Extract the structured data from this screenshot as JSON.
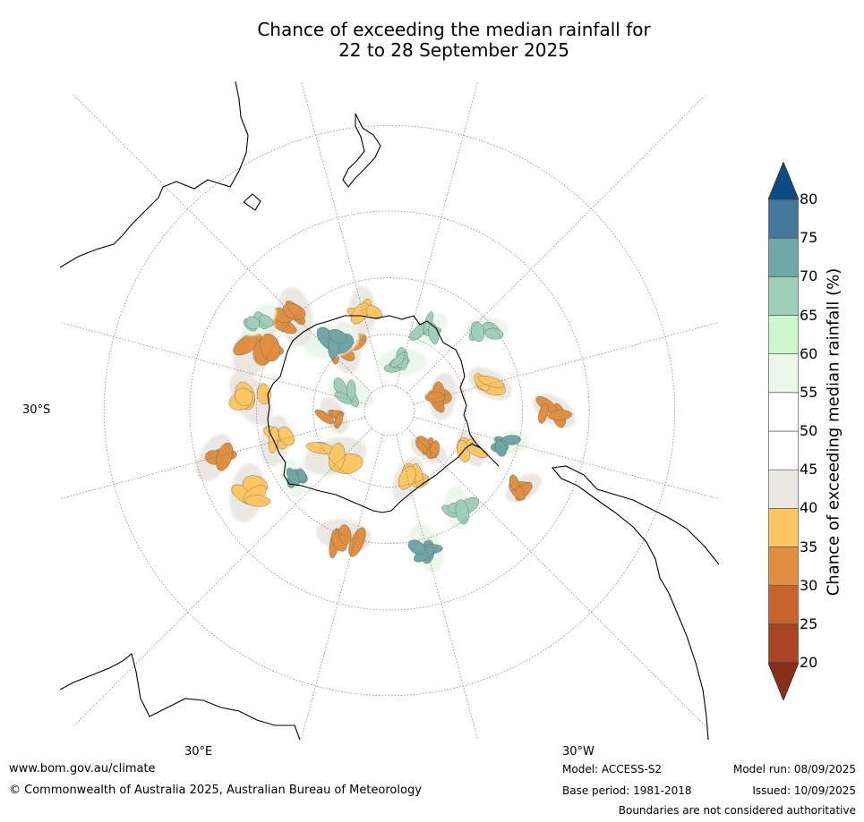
{
  "title_line1": "Chance of exceeding the median rainfall for",
  "title_line2": "22 to 28 September 2025",
  "map": {
    "projection": "south-polar-stereographic",
    "lat_label": "30°S",
    "lon_label_left": "30°E",
    "lon_label_right": "30°W",
    "patches": [
      {
        "cat": "35-40",
        "lat": -62,
        "lon": 85,
        "r": 1.6
      },
      {
        "cat": "30-35",
        "lat": -40,
        "lon": 115,
        "r": 1.4
      },
      {
        "cat": "35-40",
        "lat": -45,
        "lon": 60,
        "r": 1.3
      },
      {
        "cat": "70-75",
        "lat": -37,
        "lon": 150,
        "r": 1.3
      },
      {
        "cat": "65-70",
        "lat": -45,
        "lon": 170,
        "r": 1.1
      },
      {
        "cat": "35-40",
        "lat": -62,
        "lon": 150,
        "r": 1.2
      },
      {
        "cat": "30-35",
        "lat": -68,
        "lon": 180,
        "r": 1.0
      },
      {
        "cat": "35-40",
        "lat": -55,
        "lon": -160,
        "r": 1.0
      },
      {
        "cat": "30-35",
        "lat": -68,
        "lon": -120,
        "r": 1.2
      },
      {
        "cat": "70-75",
        "lat": -43,
        "lon": -150,
        "r": 1.0
      },
      {
        "cat": "30-35",
        "lat": -33,
        "lon": -165,
        "r": 1.0
      },
      {
        "cat": "30-35",
        "lat": -30,
        "lon": -135,
        "r": 1.2
      },
      {
        "cat": "65-70",
        "lat": -70,
        "lon": -60,
        "r": 1.2
      },
      {
        "cat": "65-70",
        "lat": -55,
        "lon": -70,
        "r": 1.1
      },
      {
        "cat": "30-35",
        "lat": -60,
        "lon": -10,
        "r": 1.3
      },
      {
        "cat": "70-75",
        "lat": -55,
        "lon": -5,
        "r": 1.4
      },
      {
        "cat": "30-35",
        "lat": -40,
        "lon": 0,
        "r": 1.5
      },
      {
        "cat": "30-35",
        "lat": -35,
        "lon": 20,
        "r": 1.6
      },
      {
        "cat": "35-40",
        "lat": -38,
        "lon": 40,
        "r": 1.5
      },
      {
        "cat": "65-70",
        "lat": -32,
        "lon": 10,
        "r": 1.0
      },
      {
        "cat": "35-40",
        "lat": -30,
        "lon": 75,
        "r": 1.5
      },
      {
        "cat": "30-35",
        "lat": -25,
        "lon": 60,
        "r": 1.3
      },
      {
        "cat": "70-75",
        "lat": -45,
        "lon": 80,
        "r": 1.0
      },
      {
        "cat": "65-70",
        "lat": -73,
        "lon": 20,
        "r": 1.2
      },
      {
        "cat": "30-35",
        "lat": -68,
        "lon": 50,
        "r": 1.0
      },
      {
        "cat": "35-40",
        "lat": -50,
        "lon": -30,
        "r": 1.2
      },
      {
        "cat": "65-70",
        "lat": -42,
        "lon": -95,
        "r": 1.1
      },
      {
        "cat": "35-40",
        "lat": -50,
        "lon": -120,
        "r": 1.2
      }
    ]
  },
  "colorbar": {
    "title": "Chance of exceeding median rainfall (%)",
    "ticks": [
      "20",
      "25",
      "30",
      "35",
      "40",
      "45",
      "50",
      "55",
      "60",
      "65",
      "70",
      "75",
      "80"
    ],
    "colors": {
      "under": "#8a2e1a",
      "bins": [
        "#a84527",
        "#c8632f",
        "#e08e3f",
        "#fcc762",
        "#ebe8e3",
        "#ffffff",
        "#ffffff",
        "#ebf7ea",
        "#ccf7cc",
        "#9fcfb8",
        "#6fa6a6",
        "#43789a"
      ],
      "over": "#0e4b86"
    },
    "category_index": {
      "25-30": 1,
      "30-35": 2,
      "35-40": 3,
      "40-45": 4,
      "55-60": 7,
      "60-65": 8,
      "65-70": 9,
      "70-75": 10,
      "75-80": 11
    }
  },
  "footer": {
    "website": "www.bom.gov.au/climate",
    "copyright": "© Commonwealth of Australia 2025, Australian Bureau of Meteorology",
    "model": "Model: ACCESS-S2",
    "base_period": "Base period: 1981-2018",
    "model_run": "Model run: 08/09/2025",
    "issued": "Issued: 10/09/2025",
    "disclaimer": "Boundaries are not considered authoritative"
  }
}
